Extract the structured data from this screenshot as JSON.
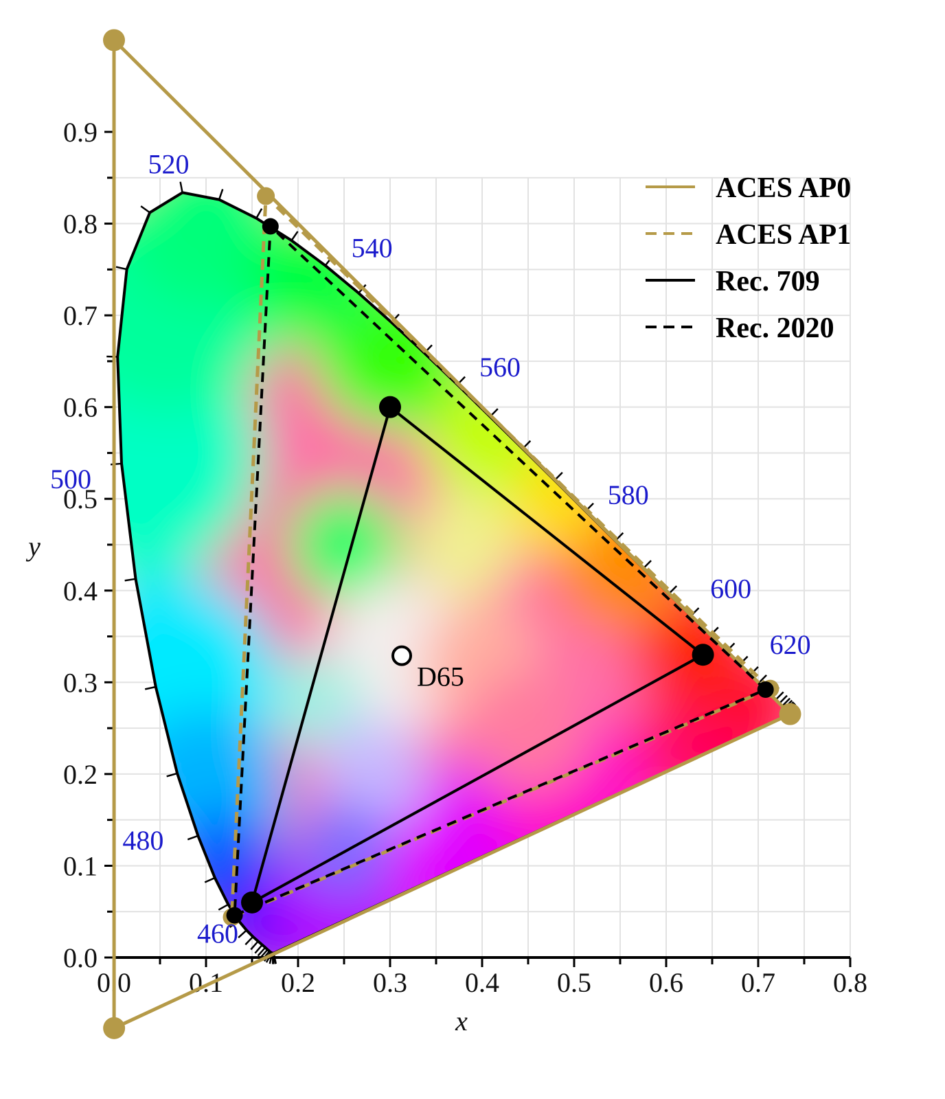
{
  "chart_data": {
    "type": "scatter",
    "xlabel": "x",
    "ylabel": "y",
    "xlim": [
      0.0,
      0.8
    ],
    "ylim": [
      0.0,
      0.9
    ],
    "x_ticks": [
      "0.0",
      "0.1",
      "0.2",
      "0.3",
      "0.4",
      "0.5",
      "0.6",
      "0.7",
      "0.8"
    ],
    "y_ticks": [
      "0.0",
      "0.1",
      "0.2",
      "0.3",
      "0.4",
      "0.5",
      "0.6",
      "0.7",
      "0.8",
      "0.9"
    ],
    "grid": true,
    "legend_position": "top-right",
    "spectral_locus": [
      [
        0.1741,
        0.005
      ],
      [
        0.1738,
        0.0049
      ],
      [
        0.1736,
        0.0049
      ],
      [
        0.1733,
        0.0048
      ],
      [
        0.173,
        0.0048
      ],
      [
        0.1726,
        0.0048
      ],
      [
        0.1721,
        0.0048
      ],
      [
        0.1714,
        0.0051
      ],
      [
        0.1703,
        0.0058
      ],
      [
        0.1689,
        0.0069
      ],
      [
        0.1669,
        0.0086
      ],
      [
        0.1644,
        0.0109
      ],
      [
        0.1611,
        0.0138
      ],
      [
        0.1566,
        0.0177
      ],
      [
        0.151,
        0.0227
      ],
      [
        0.144,
        0.0297
      ],
      [
        0.1355,
        0.0399
      ],
      [
        0.1241,
        0.0578
      ],
      [
        0.1096,
        0.0868
      ],
      [
        0.0913,
        0.1327
      ],
      [
        0.0687,
        0.2007
      ],
      [
        0.0454,
        0.295
      ],
      [
        0.0235,
        0.4127
      ],
      [
        0.0082,
        0.5384
      ],
      [
        0.0039,
        0.6548
      ],
      [
        0.0139,
        0.7502
      ],
      [
        0.0389,
        0.812
      ],
      [
        0.0743,
        0.8338
      ],
      [
        0.1142,
        0.8262
      ],
      [
        0.1547,
        0.8059
      ],
      [
        0.1929,
        0.7816
      ],
      [
        0.2296,
        0.7543
      ],
      [
        0.2658,
        0.7243
      ],
      [
        0.3016,
        0.6923
      ],
      [
        0.3373,
        0.6589
      ],
      [
        0.3731,
        0.6245
      ],
      [
        0.4087,
        0.5896
      ],
      [
        0.4441,
        0.5547
      ],
      [
        0.4788,
        0.5202
      ],
      [
        0.5125,
        0.4866
      ],
      [
        0.5448,
        0.4544
      ],
      [
        0.5752,
        0.4242
      ],
      [
        0.6029,
        0.3965
      ],
      [
        0.627,
        0.3725
      ],
      [
        0.6482,
        0.3514
      ],
      [
        0.6658,
        0.334
      ],
      [
        0.6801,
        0.3197
      ],
      [
        0.6915,
        0.3083
      ],
      [
        0.7006,
        0.2993
      ],
      [
        0.7079,
        0.292
      ],
      [
        0.714,
        0.2859
      ],
      [
        0.719,
        0.2809
      ],
      [
        0.723,
        0.277
      ],
      [
        0.726,
        0.274
      ],
      [
        0.7283,
        0.2717
      ],
      [
        0.73,
        0.27
      ],
      [
        0.7311,
        0.2689
      ],
      [
        0.732,
        0.268
      ],
      [
        0.7327,
        0.2673
      ],
      [
        0.7334,
        0.2666
      ],
      [
        0.734,
        0.266
      ],
      [
        0.7344,
        0.2656
      ],
      [
        0.7346,
        0.2654
      ],
      [
        0.7347,
        0.2653
      ]
    ],
    "wavelength_labels": [
      {
        "text": "460",
        "x": 0.144,
        "y": 0.0297
      },
      {
        "text": "480",
        "x": 0.0913,
        "y": 0.1327
      },
      {
        "text": "500",
        "x": 0.0082,
        "y": 0.5384
      },
      {
        "text": "520",
        "x": 0.0743,
        "y": 0.8338
      },
      {
        "text": "540",
        "x": 0.2296,
        "y": 0.7543
      },
      {
        "text": "560",
        "x": 0.3731,
        "y": 0.6245
      },
      {
        "text": "580",
        "x": 0.5125,
        "y": 0.4866
      },
      {
        "text": "600",
        "x": 0.627,
        "y": 0.3725
      },
      {
        "text": "620",
        "x": 0.6915,
        "y": 0.3083
      }
    ],
    "series": [
      {
        "name": "ACES AP0",
        "color": "#b59a48",
        "dash": "solid",
        "primaries": [
          [
            0.7347,
            0.2653
          ],
          [
            0.0,
            1.0
          ],
          [
            0.0001,
            -0.077
          ]
        ]
      },
      {
        "name": "ACES AP1",
        "color": "#b59a48",
        "dash": "dashed",
        "primaries": [
          [
            0.713,
            0.293
          ],
          [
            0.165,
            0.83
          ],
          [
            0.128,
            0.044
          ]
        ]
      },
      {
        "name": "Rec. 709",
        "color": "#000000",
        "dash": "solid",
        "primaries": [
          [
            0.64,
            0.33
          ],
          [
            0.3,
            0.6
          ],
          [
            0.15,
            0.06
          ]
        ]
      },
      {
        "name": "Rec. 2020",
        "color": "#000000",
        "dash": "dashed",
        "primaries": [
          [
            0.708,
            0.292
          ],
          [
            0.17,
            0.797
          ],
          [
            0.131,
            0.046
          ]
        ]
      }
    ],
    "white_point": {
      "name": "D65",
      "x": 0.3127,
      "y": 0.329
    }
  }
}
